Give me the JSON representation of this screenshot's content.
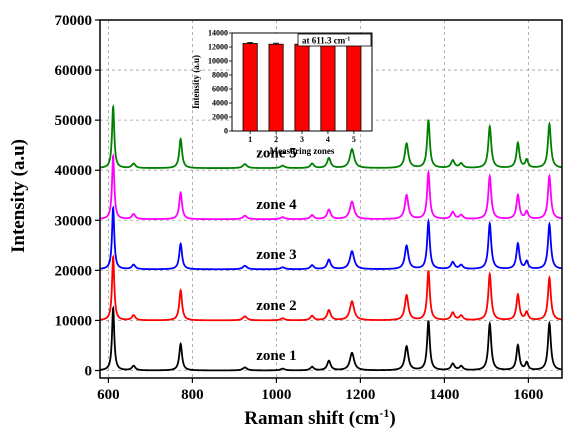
{
  "chart_data": [
    {
      "type": "line",
      "xlabel": "Raman shift (cm",
      "xlabel_sup": "-1",
      "xlabel_close": ")",
      "ylabel": "Intensity (a.u)",
      "xlim": [
        580,
        1680
      ],
      "ylim": [
        -1500,
        70000
      ],
      "x_ticks": [
        600,
        800,
        1000,
        1200,
        1400,
        1600
      ],
      "y_ticks": [
        0,
        10000,
        20000,
        30000,
        40000,
        50000,
        60000,
        70000
      ],
      "grid": true,
      "peak_positions": [
        611.3,
        660,
        772,
        925,
        1015,
        1085,
        1125,
        1180,
        1310,
        1362,
        1420,
        1440,
        1508,
        1575,
        1596,
        1650
      ],
      "series": [
        {
          "name": "zone 1",
          "color": "#000000",
          "baseline": 0,
          "peaks": [
            12500,
            900,
            5300,
            600,
            350,
            700,
            1900,
            3500,
            4800,
            9900,
            1300,
            800,
            9300,
            5000,
            1500,
            9400
          ]
        },
        {
          "name": "zone 2",
          "color": "#ff0000",
          "baseline": 10000,
          "peaks": [
            12700,
            1000,
            6000,
            800,
            400,
            900,
            2000,
            3800,
            5000,
            9900,
            1500,
            900,
            9200,
            5100,
            1600,
            8500
          ]
        },
        {
          "name": "zone 3",
          "color": "#0000ff",
          "baseline": 20200,
          "peaks": [
            12300,
            900,
            5100,
            700,
            400,
            800,
            1900,
            3600,
            4700,
            9500,
            1400,
            800,
            9100,
            5100,
            1500,
            9000
          ]
        },
        {
          "name": "zone 4",
          "color": "#ff00ff",
          "baseline": 30200,
          "peaks": [
            12700,
            1000,
            5300,
            700,
            400,
            800,
            1900,
            3500,
            4800,
            9300,
            1400,
            800,
            8600,
            4800,
            1500,
            8600
          ]
        },
        {
          "name": "zone 5",
          "color": "#008000",
          "baseline": 40400,
          "peaks": [
            12300,
            900,
            5800,
            800,
            500,
            900,
            2000,
            3800,
            4900,
            9600,
            1500,
            900,
            8300,
            5000,
            1600,
            8800
          ]
        }
      ]
    },
    {
      "type": "bar",
      "title": "at 611.3 cm",
      "title_sup": "-1",
      "xlabel": "Measuring zones",
      "ylabel": "Intensity (a.u)",
      "categories": [
        "1",
        "2",
        "3",
        "4",
        "5"
      ],
      "values": [
        12500,
        12400,
        12400,
        12600,
        12400
      ],
      "errors": [
        150,
        150,
        120,
        160,
        150
      ],
      "ylim": [
        0,
        14000
      ],
      "y_ticks": [
        0,
        2000,
        4000,
        6000,
        8000,
        10000,
        12000,
        14000
      ],
      "bar_color": "#ff0000"
    }
  ]
}
